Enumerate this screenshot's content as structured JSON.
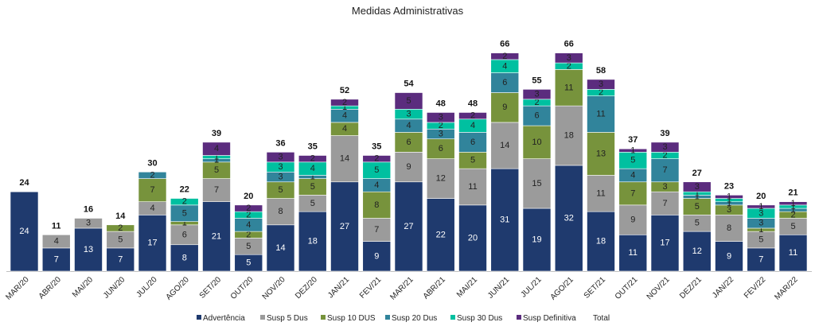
{
  "chart_data": {
    "type": "bar",
    "stacked": true,
    "title": "Medidas Administrativas",
    "xlabel": "",
    "ylabel": "",
    "ylim": [
      0,
      70
    ],
    "grid": false,
    "legend_position": "bottom",
    "categories": [
      "MAR/20",
      "ABR/20",
      "MAI/20",
      "JUN/20",
      "JUL/20",
      "AGO/20",
      "SET/20",
      "OUT/20",
      "NOV/20",
      "DEZ/20",
      "JAN/21",
      "FEV/21",
      "MAR/21",
      "ABR/21",
      "MAI/21",
      "JUN/21",
      "JUL/21",
      "AGO/21",
      "SET/21",
      "OUT/21",
      "NOV/21",
      "DEZ/21",
      "JAN/22",
      "FEV/22",
      "MAR/22"
    ],
    "series": [
      {
        "name": "Advertência",
        "color": "#1F3A6E",
        "label_color": "#FFFFFF",
        "values": [
          24,
          7,
          13,
          7,
          17,
          8,
          21,
          5,
          14,
          18,
          27,
          9,
          27,
          22,
          20,
          31,
          19,
          32,
          18,
          11,
          17,
          12,
          9,
          7,
          11
        ]
      },
      {
        "name": "Susp 5 Dus",
        "color": "#9B9B9B",
        "label_color": "#222222",
        "values": [
          0,
          4,
          3,
          5,
          4,
          6,
          7,
          5,
          8,
          5,
          14,
          7,
          9,
          12,
          11,
          14,
          15,
          18,
          11,
          9,
          7,
          5,
          8,
          5,
          5
        ]
      },
      {
        "name": "Susp 10 DUS",
        "color": "#77933C",
        "label_color": "#222222",
        "values": [
          0,
          0,
          0,
          2,
          7,
          1,
          5,
          2,
          5,
          5,
          4,
          8,
          6,
          6,
          5,
          9,
          10,
          11,
          13,
          7,
          3,
          5,
          3,
          1,
          2
        ]
      },
      {
        "name": "Susp 20 Dus",
        "color": "#31849B",
        "label_color": "#222222",
        "values": [
          0,
          0,
          0,
          0,
          2,
          5,
          1,
          4,
          3,
          1,
          4,
          4,
          4,
          3,
          6,
          6,
          6,
          0,
          11,
          4,
          7,
          1,
          1,
          3,
          1
        ]
      },
      {
        "name": "Susp 30 Dus",
        "color": "#00C0A0",
        "label_color": "#222222",
        "values": [
          0,
          0,
          0,
          0,
          0,
          2,
          1,
          2,
          3,
          4,
          1,
          5,
          3,
          2,
          4,
          4,
          2,
          2,
          2,
          5,
          2,
          1,
          1,
          3,
          1
        ]
      },
      {
        "name": "Susp Definitiva",
        "color": "#5B2C7E",
        "label_color": "#222222",
        "values": [
          0,
          0,
          0,
          0,
          0,
          0,
          4,
          2,
          3,
          2,
          2,
          2,
          5,
          3,
          2,
          2,
          3,
          3,
          3,
          1,
          3,
          3,
          1,
          1,
          1
        ]
      }
    ],
    "totals": [
      24,
      11,
      16,
      14,
      30,
      22,
      39,
      20,
      36,
      35,
      52,
      35,
      54,
      48,
      48,
      66,
      55,
      66,
      58,
      37,
      39,
      27,
      23,
      20,
      21
    ],
    "total_legend_label": "Total"
  }
}
